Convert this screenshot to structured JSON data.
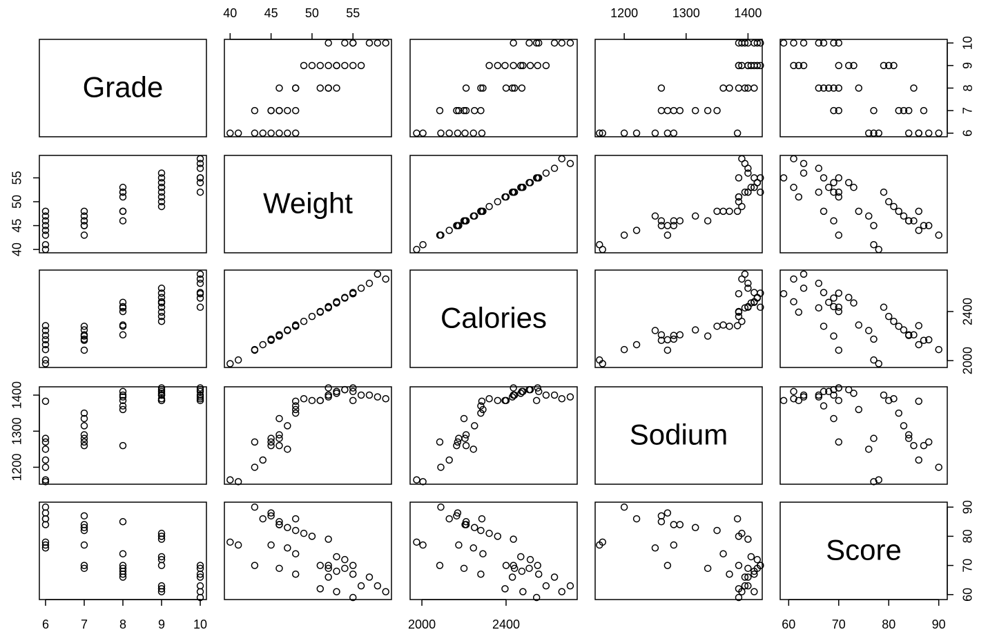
{
  "chart_data": {
    "type": "scatter_matrix",
    "point_color": "#000000",
    "variables": [
      {
        "name": "Grade",
        "lim": [
          5.84,
          10.16
        ],
        "ticks": [
          6,
          7,
          8,
          9,
          10
        ],
        "values": [
          6,
          6,
          6,
          6,
          6,
          6,
          6,
          6,
          7,
          7,
          7,
          7,
          7,
          7,
          7,
          8,
          8,
          8,
          8,
          8,
          8,
          8,
          9,
          9,
          9,
          9,
          9,
          9,
          9,
          9,
          9,
          10,
          10,
          10,
          10,
          10,
          10,
          10
        ]
      },
      {
        "name": "Weight",
        "lim": [
          39.3,
          59.7
        ],
        "ticks": [
          40,
          45,
          50,
          55
        ],
        "values": [
          40,
          41,
          43,
          44,
          45,
          46,
          47,
          48,
          43,
          45,
          46,
          47,
          48,
          45,
          46,
          46,
          48,
          51,
          52,
          53,
          48,
          52,
          49,
          50,
          52,
          53,
          54,
          55,
          56,
          51,
          53,
          52,
          54,
          55,
          57,
          58,
          59,
          55
        ]
      },
      {
        "name": "Calories",
        "lim": [
          1944,
          2738
        ],
        "ticks": [
          2000,
          2400
        ],
        "values": [
          1975,
          2005,
          2090,
          2130,
          2170,
          2205,
          2245,
          2285,
          2085,
          2165,
          2210,
          2250,
          2280,
          2175,
          2200,
          2210,
          2290,
          2400,
          2440,
          2475,
          2280,
          2430,
          2320,
          2360,
          2435,
          2470,
          2515,
          2550,
          2590,
          2395,
          2480,
          2435,
          2510,
          2555,
          2630,
          2705,
          2665,
          2545
        ]
      },
      {
        "name": "Sodium",
        "lim": [
          1153,
          1423
        ],
        "ticks": [
          1200,
          1300,
          1400
        ],
        "values": [
          1165,
          1160,
          1200,
          1220,
          1270,
          1280,
          1250,
          1383,
          1270,
          1260,
          1290,
          1315,
          1350,
          1280,
          1335,
          1260,
          1360,
          1385,
          1400,
          1410,
          1370,
          1395,
          1390,
          1385,
          1400,
          1405,
          1415,
          1420,
          1400,
          1385,
          1410,
          1420,
          1415,
          1410,
          1400,
          1395,
          1390,
          1385
        ]
      },
      {
        "name": "Score",
        "lim": [
          58.3,
          91.7
        ],
        "ticks": [
          60,
          70,
          80,
          90
        ],
        "values": [
          78,
          77,
          90,
          86,
          88,
          84,
          76,
          86,
          70,
          87,
          84,
          83,
          82,
          77,
          69,
          85,
          74,
          70,
          69,
          68,
          67,
          66,
          81,
          80,
          79,
          73,
          72,
          70,
          63,
          62,
          61,
          70,
          69,
          67,
          66,
          63,
          61,
          59
        ]
      }
    ]
  }
}
